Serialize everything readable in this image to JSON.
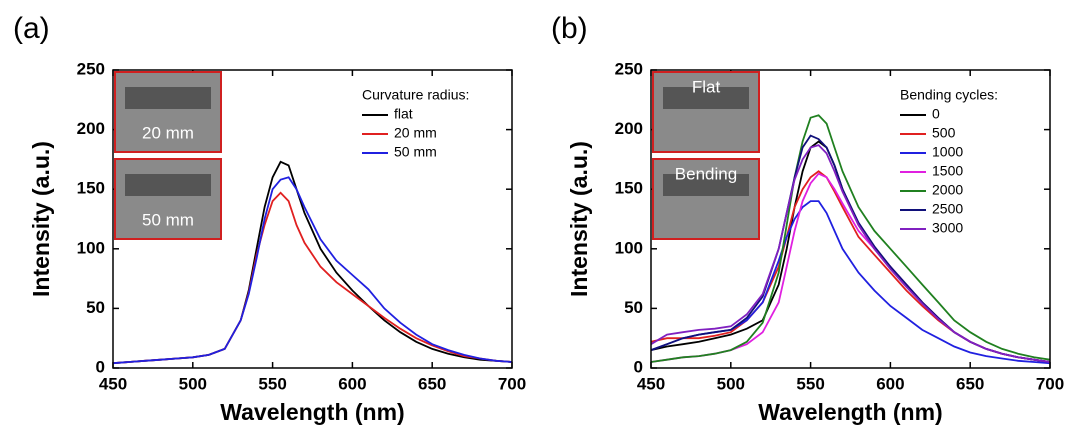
{
  "chart_data": [
    {
      "type": "line",
      "panel_label": "(a)",
      "xlabel": "Wavelength (nm)",
      "ylabel": "Intensity (a.u.)",
      "xlim": [
        450,
        700
      ],
      "ylim": [
        0,
        250
      ],
      "xticks": [
        450,
        500,
        550,
        600,
        650,
        700
      ],
      "yticks": [
        0,
        50,
        100,
        150,
        200,
        250
      ],
      "legend_title": "Curvature radius:",
      "insets": [
        "20 mm",
        "50 mm"
      ],
      "x": [
        450,
        460,
        470,
        480,
        490,
        500,
        510,
        520,
        530,
        535,
        540,
        545,
        550,
        555,
        560,
        565,
        570,
        580,
        590,
        600,
        610,
        620,
        630,
        640,
        650,
        660,
        670,
        680,
        690,
        700
      ],
      "series": [
        {
          "name": "flat",
          "color": "#000000",
          "values": [
            4,
            5,
            6,
            7,
            8,
            9,
            11,
            16,
            40,
            65,
            100,
            135,
            160,
            173,
            170,
            150,
            130,
            100,
            80,
            65,
            52,
            40,
            30,
            22,
            16,
            12,
            9,
            7,
            6,
            5
          ]
        },
        {
          "name": "20 mm",
          "color": "#e02020",
          "values": [
            4,
            5,
            6,
            7,
            8,
            9,
            11,
            16,
            40,
            63,
            95,
            120,
            140,
            147,
            140,
            120,
            105,
            85,
            72,
            62,
            52,
            42,
            33,
            25,
            19,
            14,
            10,
            8,
            6,
            5
          ]
        },
        {
          "name": "50 mm",
          "color": "#2020e0",
          "values": [
            4,
            5,
            6,
            7,
            8,
            9,
            11,
            16,
            40,
            62,
            92,
            125,
            150,
            158,
            160,
            150,
            135,
            108,
            90,
            78,
            66,
            50,
            38,
            28,
            20,
            15,
            11,
            8,
            6,
            5
          ]
        }
      ]
    },
    {
      "type": "line",
      "panel_label": "(b)",
      "xlabel": "Wavelength (nm)",
      "ylabel": "Intensity (a.u.)",
      "xlim": [
        450,
        700
      ],
      "ylim": [
        0,
        250
      ],
      "xticks": [
        450,
        500,
        550,
        600,
        650,
        700
      ],
      "yticks": [
        0,
        50,
        100,
        150,
        200,
        250
      ],
      "legend_title": "Bending cycles:",
      "insets": [
        "Flat",
        "Bending"
      ],
      "x": [
        450,
        460,
        470,
        480,
        490,
        500,
        510,
        520,
        530,
        535,
        540,
        545,
        550,
        555,
        560,
        565,
        570,
        580,
        590,
        600,
        610,
        620,
        630,
        640,
        650,
        660,
        670,
        680,
        690,
        700
      ],
      "series": [
        {
          "name": "0",
          "color": "#000000",
          "values": [
            15,
            18,
            20,
            22,
            25,
            28,
            33,
            40,
            70,
            100,
            135,
            165,
            185,
            190,
            185,
            170,
            150,
            120,
            100,
            85,
            70,
            55,
            42,
            30,
            22,
            16,
            12,
            9,
            7,
            5
          ]
        },
        {
          "name": "500",
          "color": "#e02020",
          "values": [
            22,
            25,
            25,
            25,
            27,
            30,
            40,
            55,
            85,
            110,
            135,
            150,
            160,
            165,
            160,
            148,
            135,
            110,
            95,
            80,
            65,
            52,
            40,
            30,
            22,
            16,
            12,
            9,
            7,
            5
          ]
        },
        {
          "name": "1000",
          "color": "#2020e0",
          "values": [
            15,
            20,
            25,
            28,
            30,
            32,
            40,
            55,
            90,
            110,
            125,
            135,
            140,
            140,
            130,
            115,
            100,
            80,
            65,
            52,
            42,
            32,
            25,
            18,
            13,
            10,
            8,
            6,
            5,
            4
          ]
        },
        {
          "name": "1500",
          "color": "#e020e0",
          "values": [
            5,
            7,
            9,
            10,
            12,
            15,
            20,
            30,
            55,
            85,
            115,
            140,
            155,
            163,
            160,
            150,
            138,
            115,
            100,
            85,
            70,
            55,
            42,
            30,
            22,
            16,
            12,
            9,
            7,
            5
          ]
        },
        {
          "name": "2000",
          "color": "#208020",
          "values": [
            5,
            7,
            9,
            10,
            12,
            15,
            22,
            38,
            80,
            120,
            160,
            190,
            210,
            212,
            205,
            185,
            165,
            135,
            115,
            100,
            85,
            70,
            55,
            40,
            30,
            22,
            16,
            12,
            9,
            7
          ]
        },
        {
          "name": "2500",
          "color": "#10107a",
          "values": [
            15,
            20,
            25,
            28,
            30,
            32,
            42,
            60,
            100,
            130,
            160,
            185,
            195,
            192,
            185,
            170,
            150,
            122,
            102,
            85,
            70,
            55,
            42,
            30,
            22,
            16,
            12,
            9,
            7,
            5
          ]
        },
        {
          "name": "3000",
          "color": "#8020c0",
          "values": [
            20,
            28,
            30,
            32,
            33,
            35,
            45,
            62,
            100,
            130,
            158,
            175,
            185,
            187,
            180,
            165,
            148,
            120,
            100,
            83,
            68,
            54,
            41,
            30,
            22,
            16,
            12,
            9,
            7,
            5
          ]
        }
      ]
    }
  ]
}
